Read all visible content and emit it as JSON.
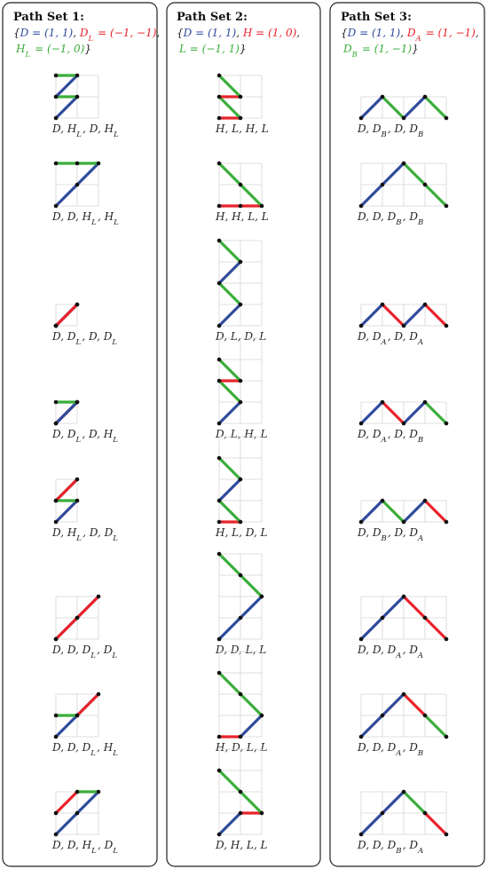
{
  "colors": {
    "blue": "#2f4a9c",
    "red": "#e8232a",
    "green": "#3aae3a",
    "brace": "#222222"
  },
  "panels": [
    {
      "title": "Path Set 1:",
      "legend": [
        [
          {
            "t": "{",
            "c": "brace"
          },
          {
            "t": "D = (1, 1)",
            "c": "blue"
          },
          {
            "t": ", ",
            "c": "brace"
          },
          {
            "t": "D_L = (−1, −1)",
            "c": "red"
          },
          {
            "t": ",",
            "c": "brace"
          }
        ],
        [
          {
            "t": "H_L = (−1, 0)",
            "c": "green"
          },
          {
            "t": "}",
            "c": "brace"
          }
        ]
      ],
      "paths": [
        {
          "label": "D, H_L, D, H_L",
          "steps": [
            "D",
            "H_L",
            "D",
            "H_L"
          ]
        },
        {
          "label": "D, D, H_L, H_L",
          "steps": [
            "D",
            "D",
            "H_L",
            "H_L"
          ]
        },
        {
          "label": "D, D_L, D, D_L",
          "steps": [
            "D",
            "D_L",
            "D",
            "D_L"
          ]
        },
        {
          "label": "D, D_L, D, H_L",
          "steps": [
            "D",
            "D_L",
            "D",
            "H_L"
          ]
        },
        {
          "label": "D, H_L, D, D_L",
          "steps": [
            "D",
            "H_L",
            "D",
            "D_L"
          ]
        },
        {
          "label": "D, D, D_L, D_L",
          "steps": [
            "D",
            "D",
            "D_L",
            "D_L"
          ]
        },
        {
          "label": "D, D, D_L, H_L",
          "steps": [
            "D",
            "D",
            "D_L",
            "H_L"
          ]
        },
        {
          "label": "D, D, H_L, D_L",
          "steps": [
            "D",
            "D",
            "H_L",
            "D_L"
          ]
        }
      ]
    },
    {
      "title": "Path Set 2:",
      "legend": [
        [
          {
            "t": "{",
            "c": "brace"
          },
          {
            "t": "D = (1, 1)",
            "c": "blue"
          },
          {
            "t": ", ",
            "c": "brace"
          },
          {
            "t": "H = (1, 0)",
            "c": "red"
          },
          {
            "t": ",",
            "c": "brace"
          }
        ],
        [
          {
            "t": "L = (−1, 1)",
            "c": "green"
          },
          {
            "t": "}",
            "c": "brace"
          }
        ]
      ],
      "paths": [
        {
          "label": "H, L, H, L",
          "steps": [
            "H",
            "L",
            "H",
            "L"
          ]
        },
        {
          "label": "H, H, L, L",
          "steps": [
            "H",
            "H",
            "L",
            "L"
          ]
        },
        {
          "label": "D, L, D, L",
          "steps": [
            "D",
            "L",
            "D",
            "L"
          ]
        },
        {
          "label": "D, L, H, L",
          "steps": [
            "D",
            "L",
            "H",
            "L"
          ]
        },
        {
          "label": "H, L, D, L",
          "steps": [
            "H",
            "L",
            "D",
            "L"
          ]
        },
        {
          "label": "D, D, L, L",
          "steps": [
            "D",
            "D",
            "L",
            "L"
          ]
        },
        {
          "label": "H, D, L, L",
          "steps": [
            "H",
            "D",
            "L",
            "L"
          ]
        },
        {
          "label": "D, H, L, L",
          "steps": [
            "D",
            "H",
            "L",
            "L"
          ]
        }
      ]
    },
    {
      "title": "Path Set 3:",
      "legend": [
        [
          {
            "t": "{",
            "c": "brace"
          },
          {
            "t": "D = (1, 1)",
            "c": "blue"
          },
          {
            "t": ", ",
            "c": "brace"
          },
          {
            "t": "D_A = (1, −1)",
            "c": "red"
          },
          {
            "t": ",",
            "c": "brace"
          }
        ],
        [
          {
            "t": "D_B = (1, −1)",
            "c": "green"
          },
          {
            "t": "}",
            "c": "brace"
          }
        ]
      ],
      "paths": [
        {
          "label": "D, D_B, D, D_B",
          "steps": [
            "D",
            "D_B",
            "D",
            "D_B"
          ]
        },
        {
          "label": "D, D, D_B, D_B",
          "steps": [
            "D",
            "D",
            "D_B",
            "D_B"
          ]
        },
        {
          "label": "D, D_A, D, D_A",
          "steps": [
            "D",
            "D_A",
            "D",
            "D_A"
          ]
        },
        {
          "label": "D, D_A, D, D_B",
          "steps": [
            "D",
            "D_A",
            "D",
            "D_B"
          ]
        },
        {
          "label": "D, D_B, D, D_A",
          "steps": [
            "D",
            "D_B",
            "D",
            "D_A"
          ]
        },
        {
          "label": "D, D, D_A, D_A",
          "steps": [
            "D",
            "D",
            "D_A",
            "D_A"
          ]
        },
        {
          "label": "D, D, D_A, D_B",
          "steps": [
            "D",
            "D",
            "D_A",
            "D_B"
          ]
        },
        {
          "label": "D, D, D_B, D_A",
          "steps": [
            "D",
            "D",
            "D_B",
            "D_A"
          ]
        }
      ]
    }
  ]
}
